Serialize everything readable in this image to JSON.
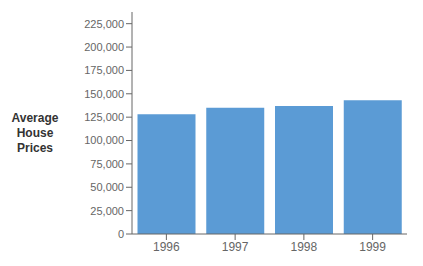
{
  "chart_data": {
    "type": "bar",
    "ylabel": "Average\nHouse\nPrices",
    "categories": [
      "1996",
      "1997",
      "1998",
      "1999"
    ],
    "values": [
      128000,
      135000,
      137000,
      143000
    ],
    "color": "#5B9BD5",
    "ylim": [
      0,
      237500
    ],
    "yticks": [
      0,
      {
        "value": 25000,
        "label": "25,000"
      },
      {
        "value": 50000,
        "label": "50,000"
      },
      {
        "value": 75000,
        "label": "75,000"
      },
      {
        "value": 100000,
        "label": "100,000"
      },
      {
        "value": 125000,
        "label": "125,000"
      },
      {
        "value": 150000,
        "label": "150,000"
      },
      {
        "value": 175000,
        "label": "175,000"
      },
      {
        "value": 200000,
        "label": "200,000"
      },
      {
        "value": 225000,
        "label": "225,000"
      }
    ],
    "grid": false
  }
}
